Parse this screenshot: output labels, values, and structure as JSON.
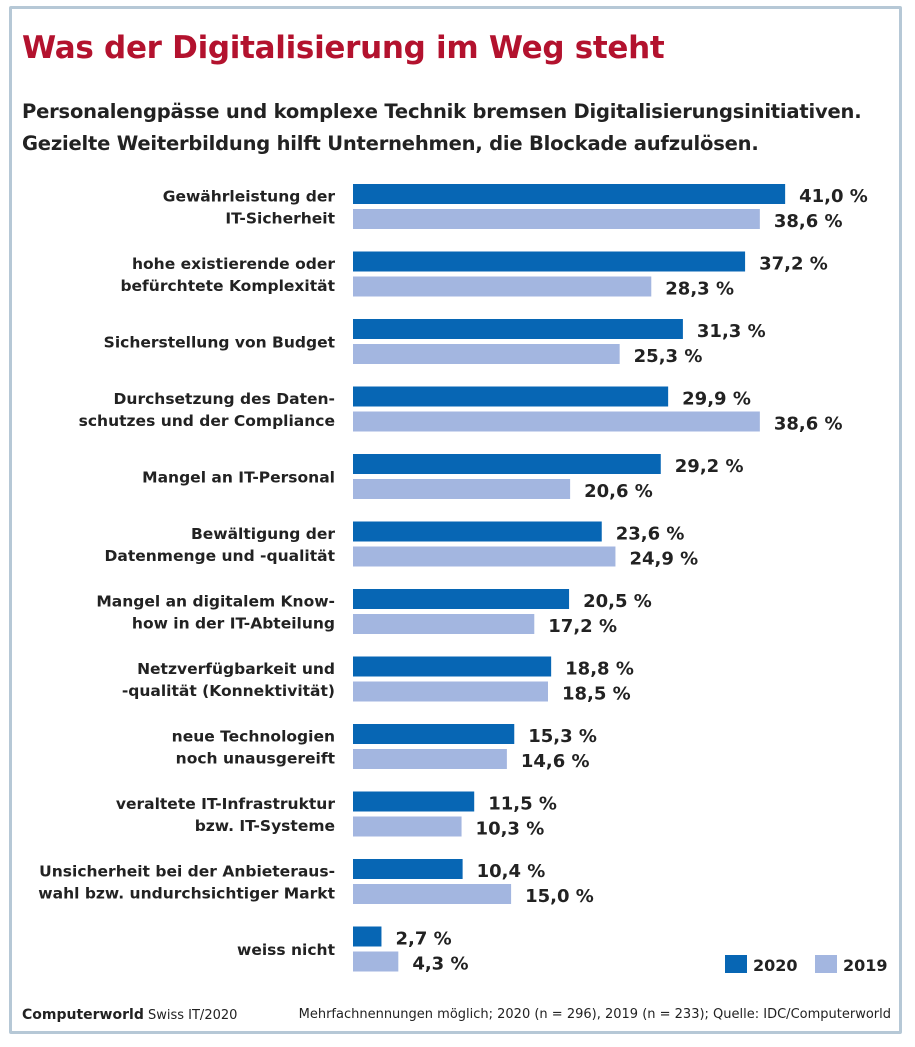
{
  "title": "Was der Digitalisierung im Weg steht",
  "subtitle_lines": [
    "Personalengpässe und komplexe Technik bremsen Digitalisierungsinitiativen.",
    "Gezielte Weiterbildung hilft Unternehmen, die Blockade aufzulösen."
  ],
  "footer": {
    "brand": "Computerworld",
    "issue": "Swiss IT/2020",
    "note": "Mehrfachnennungen möglich; 2020 (n = 296), 2019 (n = 233); Quelle: IDC/Computerworld"
  },
  "chart_data": {
    "type": "bar",
    "orientation": "horizontal",
    "categories": [
      [
        "Gewährleistung der",
        "IT-Sicherheit"
      ],
      [
        "hohe existierende oder",
        "befürchtete Komplexität"
      ],
      [
        "Sicherstellung von Budget"
      ],
      [
        "Durchsetzung des Daten-",
        "schutzes und der Compliance"
      ],
      [
        "Mangel an IT-Personal"
      ],
      [
        "Bewältigung der",
        "Datenmenge und -qualität"
      ],
      [
        "Mangel an digitalem Know-",
        "how in der IT-Abteilung"
      ],
      [
        "Netzverfügbarkeit und",
        "-qualität (Konnektivität)"
      ],
      [
        "neue Technologien",
        "noch unausgereift"
      ],
      [
        "veraltete IT-Infrastruktur",
        "bzw. IT-Systeme"
      ],
      [
        "Unsicherheit bei der Anbieteraus-",
        "wahl bzw. undurchsichtiger Markt"
      ],
      [
        "weiss nicht"
      ]
    ],
    "series": [
      {
        "name": "2020",
        "color": "#0766b4",
        "values": [
          41.0,
          37.2,
          31.3,
          29.9,
          29.2,
          23.6,
          20.5,
          18.8,
          15.3,
          11.5,
          10.4,
          2.7
        ],
        "labels": [
          "41,0 %",
          "37,2 %",
          "31,3 %",
          "29,9 %",
          "29,2 %",
          "23,6 %",
          "20,5 %",
          "18,8 %",
          "15,3 %",
          "11,5 %",
          "10,4 %",
          "2,7 %"
        ]
      },
      {
        "name": "2019",
        "color": "#a3b6e0",
        "values": [
          38.6,
          28.3,
          25.3,
          38.6,
          20.6,
          24.9,
          17.2,
          18.5,
          14.6,
          10.3,
          15.0,
          4.3
        ],
        "labels": [
          "38,6 %",
          "28,3 %",
          "25,3 %",
          "38,6 %",
          "20,6 %",
          "24,9 %",
          "17,2 %",
          "18,5 %",
          "14,6 %",
          "10,3 %",
          "15,0 %",
          "4,3 %"
        ]
      }
    ],
    "unit": "%",
    "grid": false,
    "legend_position": "bottom-right",
    "title_color": "#b3122e"
  }
}
